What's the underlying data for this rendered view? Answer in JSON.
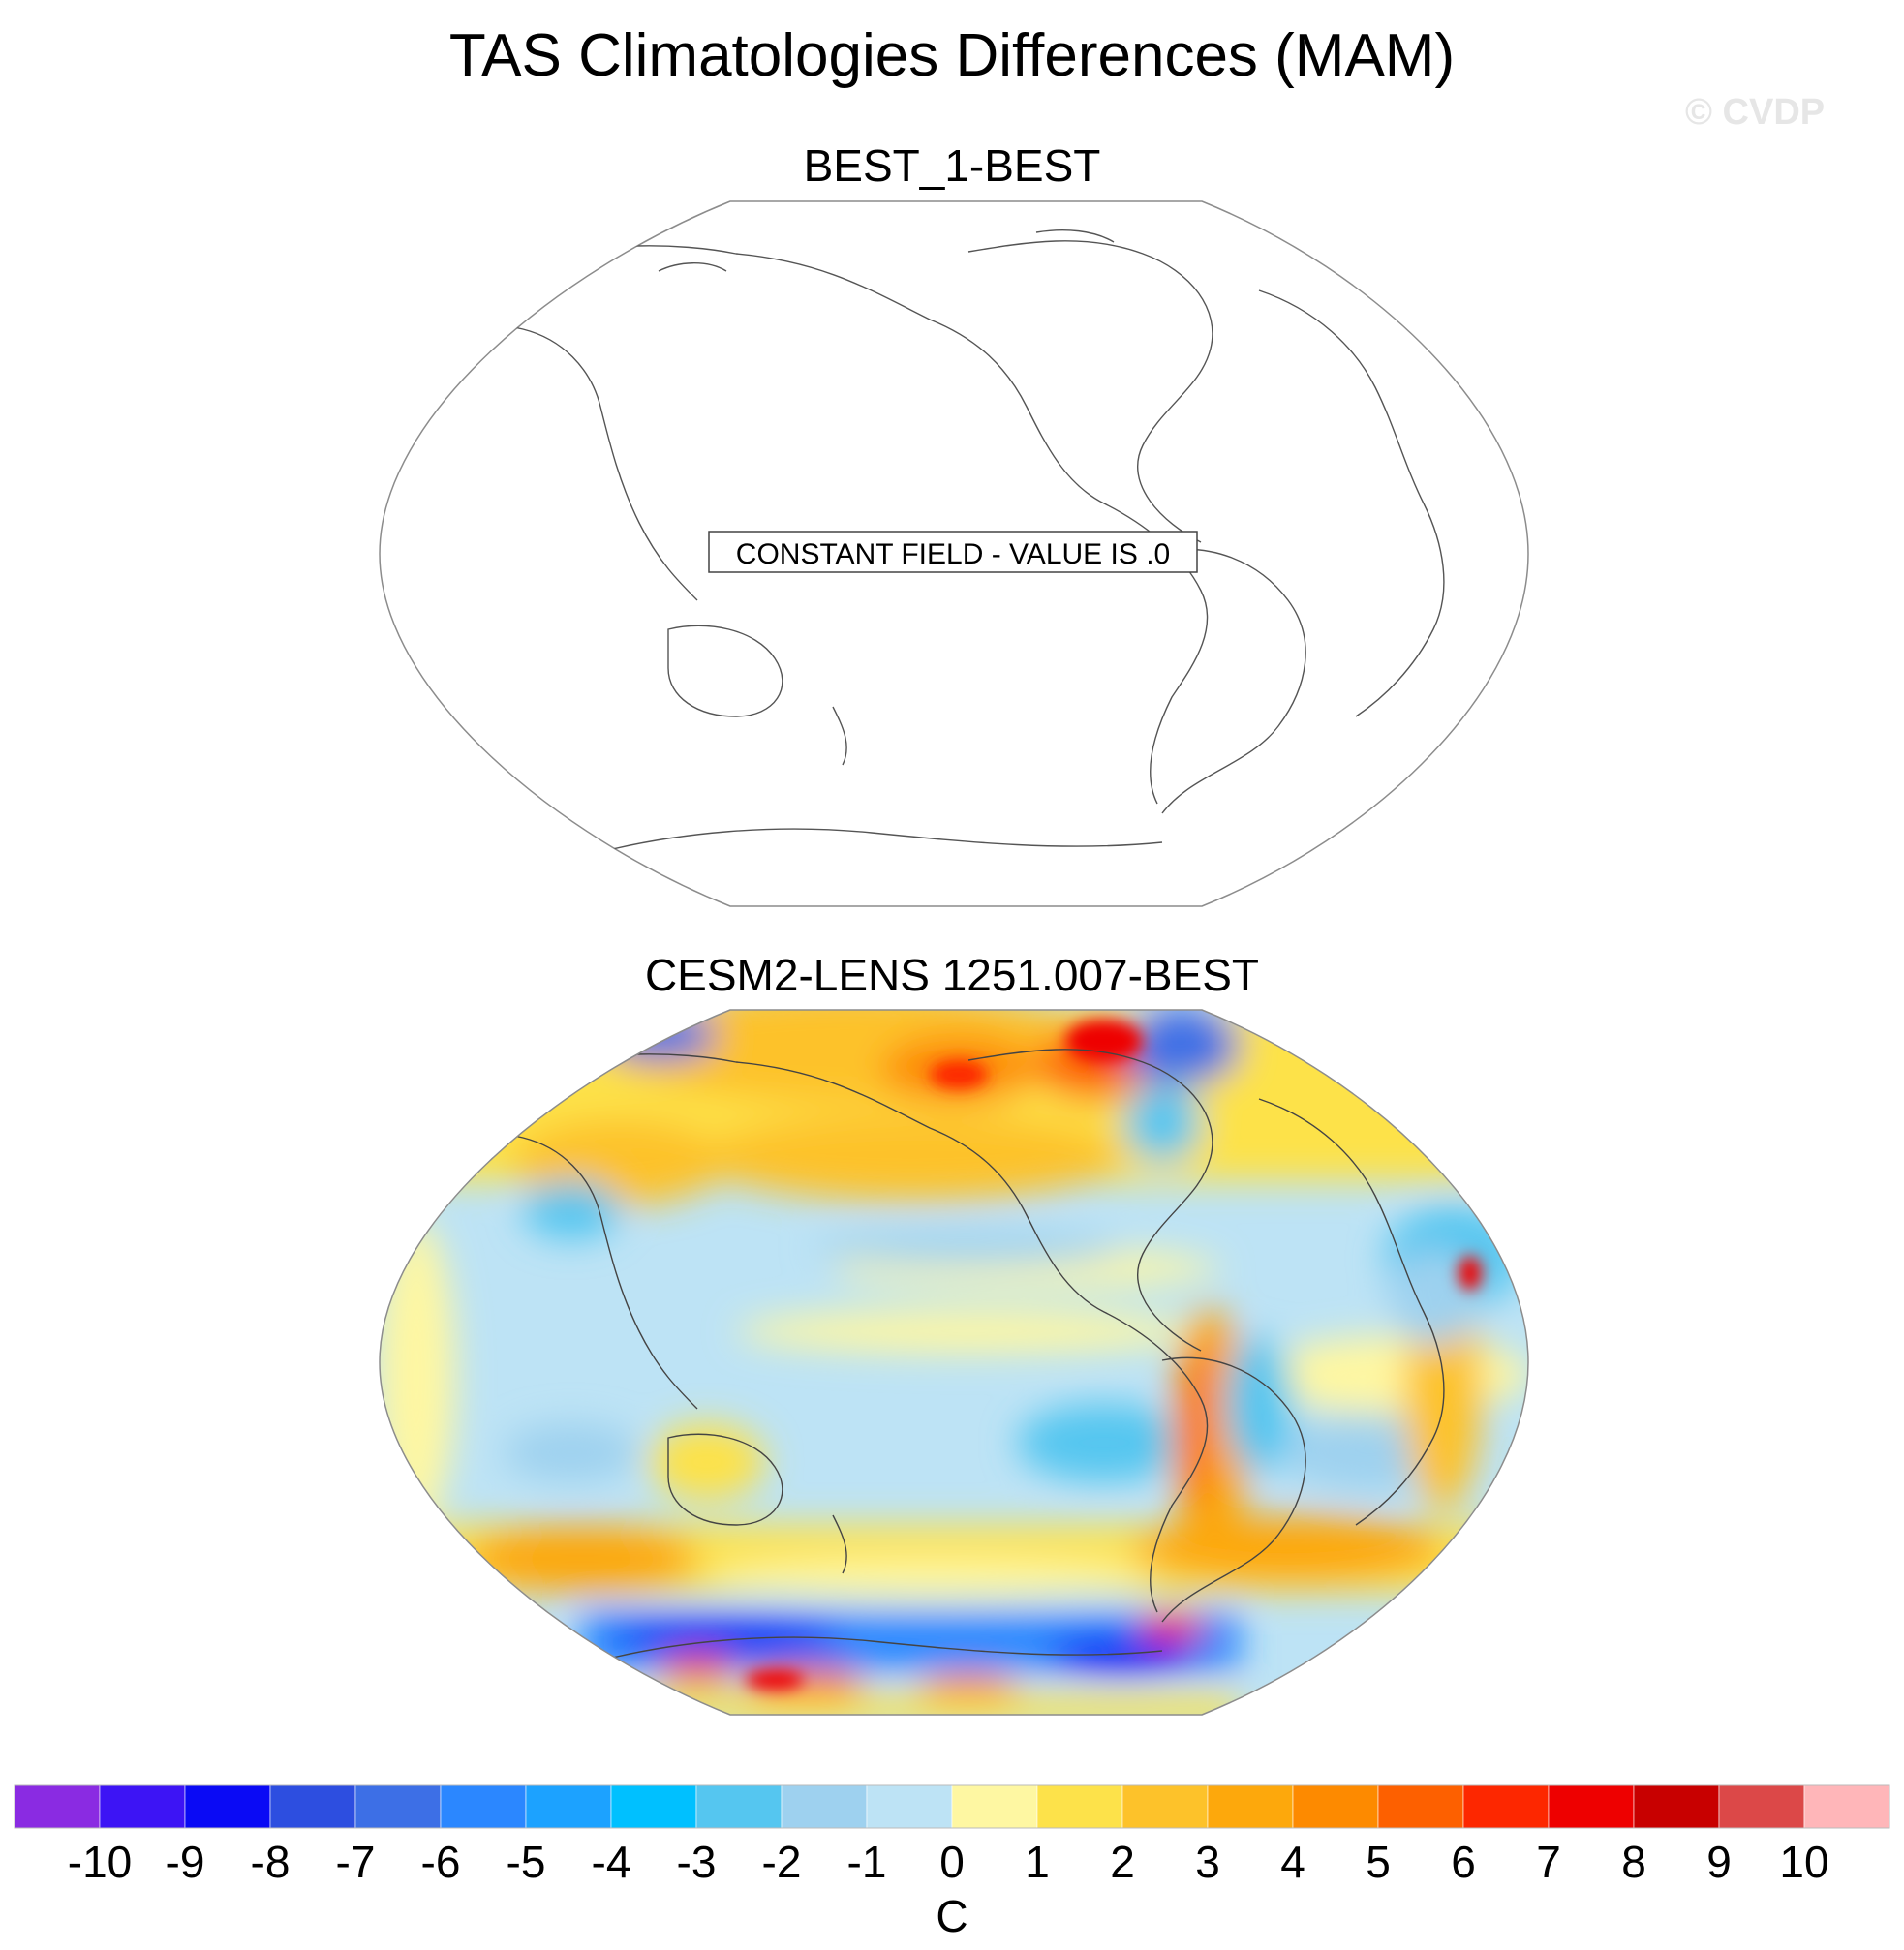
{
  "title": "TAS Climatologies Differences (MAM)",
  "watermark": "© CVDP",
  "chart_data": [
    {
      "type": "heatmap",
      "title": "BEST_1-BEST",
      "projection": "Winkel tripel (Pacific-centered)",
      "annotation": "CONSTANT FIELD - VALUE IS .0"
    },
    {
      "type": "heatmap",
      "title": "CESM2-LENS 1251.007-BEST",
      "projection": "Winkel tripel (Pacific-centered)",
      "fields": {
        "north_pacific": 2,
        "tropical_pacific": -1,
        "east_pacific": -2,
        "southern_ocean_ring": 2,
        "antarctic_coast": -7,
        "siberia": 4,
        "greenland": -6,
        "europe": 3,
        "north_africa": -2,
        "andes": 6,
        "australia": 1,
        "north_america": 3
      }
    }
  ],
  "colorbar": {
    "units": "C",
    "tick_labels": [
      "-10",
      "-9",
      "-8",
      "-7",
      "-6",
      "-5",
      "-4",
      "-3",
      "-2",
      "-1",
      "0",
      "1",
      "2",
      "3",
      "4",
      "5",
      "6",
      "7",
      "8",
      "9",
      "10"
    ],
    "colors": [
      "#8a2be2",
      "#3d14f5",
      "#0a0af5",
      "#2d4ee0",
      "#3d6fe6",
      "#2b87ff",
      "#1ca2ff",
      "#00c0ff",
      "#55c6f0",
      "#9ed1ef",
      "#bde3f5",
      "#fef7a2",
      "#fde24a",
      "#fdc22a",
      "#fda80c",
      "#fd8a00",
      "#fd6000",
      "#fd2700",
      "#ee0000",
      "#c80000",
      "#dc4848",
      "#ffb6b9"
    ]
  }
}
